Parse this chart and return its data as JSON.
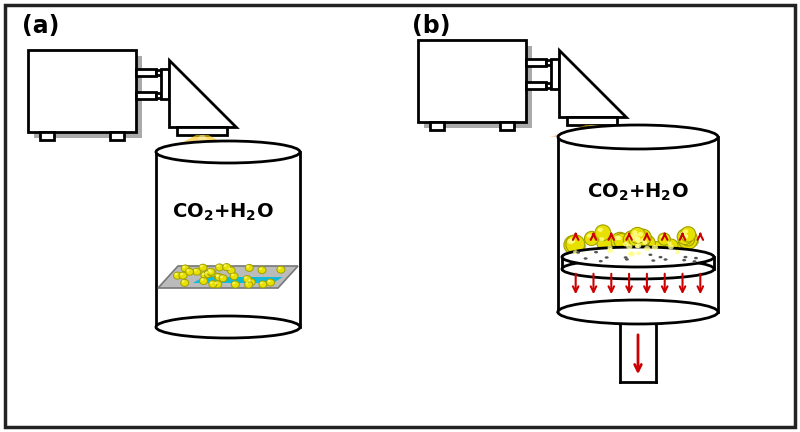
{
  "bg_color": "#ffffff",
  "border_color": "#222222",
  "panel_a_label": "(a)",
  "panel_b_label": "(b)",
  "lw": 2.0,
  "catalyst_color": "#E8E000",
  "catalyst_edge": "#A0A000",
  "red_arrow": "#CC0000",
  "cyan_color": "#00BBDD",
  "gray_plate": "#BBBBBB",
  "shadow_color": "#AAAAAA"
}
